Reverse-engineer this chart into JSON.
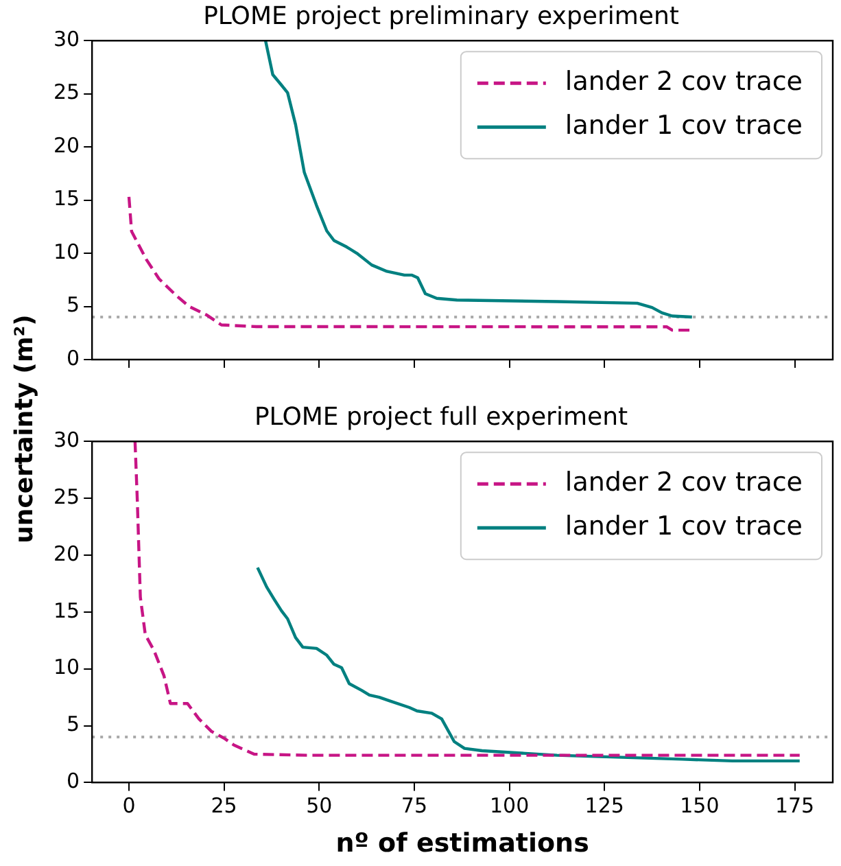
{
  "chart_data": [
    {
      "type": "line",
      "title": "PLOME project preliminary experiment",
      "ylabel": "uncertainty (m²)",
      "xlim": [
        -9.7,
        185
      ],
      "xticks": [
        0,
        25,
        50,
        75,
        100,
        125,
        150,
        175
      ],
      "ylim": [
        0,
        30
      ],
      "yticks": [
        0,
        5,
        10,
        15,
        20,
        25,
        30
      ],
      "tick_labels": "y",
      "grid": false,
      "legend": "top right",
      "marker": "none",
      "series": [
        {
          "name": "lander 2 cov trace",
          "color": "#c71585",
          "line_style": "dashed",
          "x": [
            0,
            0.7,
            4.6,
            7.9,
            12.5,
            15.8,
            20.4,
            24.3,
            33.5,
            141.4,
            142.8,
            148
          ],
          "values": [
            15.3,
            12.05,
            9.4,
            7.6,
            6.0,
            5.0,
            4.2,
            3.26,
            3.1,
            3.08,
            2.77,
            2.77
          ]
        },
        {
          "name": "lander 1 cov trace",
          "color": "#008080",
          "line_style": "solid",
          "x": [
            35.9,
            37.8,
            39.9,
            41.7,
            43.8,
            46.1,
            49.3,
            52,
            53.9,
            57.2,
            59.9,
            63.8,
            67.8,
            72.4,
            74.3,
            75.9,
            77.9,
            80.9,
            86.2,
            112.5,
            133.6,
            137.5,
            140.1,
            142.8,
            148
          ],
          "values": [
            30,
            26.8,
            25.9,
            25.1,
            22.1,
            17.6,
            14.5,
            12.1,
            11.2,
            10.6,
            10.0,
            8.9,
            8.3,
            7.95,
            7.95,
            7.7,
            6.2,
            5.76,
            5.6,
            5.45,
            5.3,
            4.9,
            4.4,
            4.1,
            4.0
          ]
        }
      ],
      "ref_lines": [
        {
          "axis": "y",
          "value": 4,
          "color": "#aaaaaa",
          "line_style": "dotted"
        }
      ]
    },
    {
      "type": "line",
      "title": "PLOME project full experiment",
      "xlabel": "nº of estimations",
      "xlim": [
        -9.7,
        185
      ],
      "xticks": [
        0,
        25,
        50,
        75,
        100,
        125,
        150,
        175
      ],
      "ylim": [
        0,
        30
      ],
      "yticks": [
        0,
        5,
        10,
        15,
        20,
        25,
        30
      ],
      "grid": false,
      "legend": "top right",
      "marker": "none",
      "series": [
        {
          "name": "lander 2 cov trace",
          "color": "#c71585",
          "line_style": "dashed",
          "x": [
            1.6,
            2.2,
            3.0,
            4.3,
            6.6,
            9.2,
            10.9,
            15.4,
            18.4,
            21.7,
            25,
            27.6,
            32.9,
            46.7,
            176.3
          ],
          "values": [
            30,
            24.8,
            16.3,
            13.0,
            11.6,
            9.4,
            6.95,
            6.95,
            5.6,
            4.5,
            3.9,
            3.3,
            2.5,
            2.4,
            2.4
          ]
        },
        {
          "name": "lander 1 cov trace",
          "color": "#008080",
          "line_style": "solid",
          "x": [
            33.8,
            36.2,
            38.2,
            40.1,
            41.7,
            43.8,
            45.7,
            49.3,
            52,
            53.9,
            55.9,
            57.9,
            61.2,
            63.2,
            65.8,
            68.4,
            73.7,
            75.7,
            79.6,
            82.2,
            85.5,
            88.2,
            92.8,
            112.5,
            145.4,
            158.6,
            176.3
          ],
          "values": [
            18.9,
            17.2,
            16.1,
            15.1,
            14.4,
            12.75,
            11.9,
            11.8,
            11.2,
            10.4,
            10.1,
            8.7,
            8.1,
            7.7,
            7.5,
            7.2,
            6.6,
            6.3,
            6.1,
            5.6,
            3.6,
            3.0,
            2.8,
            2.4,
            2.05,
            1.9,
            1.9
          ]
        }
      ],
      "ref_lines": [
        {
          "axis": "y",
          "value": 4,
          "color": "#aaaaaa",
          "line_style": "dotted"
        }
      ]
    }
  ]
}
